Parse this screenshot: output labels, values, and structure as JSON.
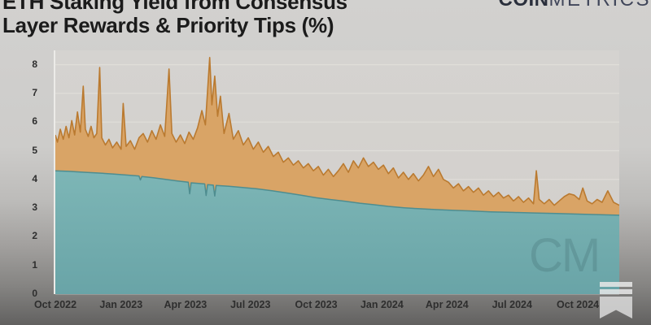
{
  "header": {
    "title_line1": "ETH Staking Yield from Consensus",
    "title_line2": "Layer Rewards & Priority Tips (%)"
  },
  "logo": {
    "bold": "COIN",
    "light": "METRICS"
  },
  "watermark_text": "CM",
  "colors": {
    "consensus_fill_top": "#7db6b6",
    "consensus_fill_bottom": "#69a4a7",
    "consensus_stroke": "#4e8d90",
    "tips_fill": "#d9a466",
    "tips_stroke": "#ba7a30",
    "plot_bg": "#d2cfcb",
    "grid": "#e0ded9"
  },
  "chart_data": {
    "type": "area",
    "title": "ETH Staking Yield from Consensus Layer Rewards & Priority Tips (%)",
    "xlabel": "",
    "ylabel": "",
    "ylim": [
      0,
      8
    ],
    "yticks": [
      0,
      1,
      2,
      3,
      4,
      5,
      6,
      7,
      8
    ],
    "grid": true,
    "legend": "none",
    "x_range": [
      "2022-10-01",
      "2024-11-28"
    ],
    "xticks": [
      {
        "label": "Oct 2022",
        "date": "2022-10-01"
      },
      {
        "label": "Jan 2023",
        "date": "2023-01-01"
      },
      {
        "label": "Apr 2023",
        "date": "2023-04-01"
      },
      {
        "label": "Jul 2023",
        "date": "2023-07-01"
      },
      {
        "label": "Oct 2023",
        "date": "2023-10-01"
      },
      {
        "label": "Jan 2024",
        "date": "2024-01-01"
      },
      {
        "label": "Apr 2024",
        "date": "2024-04-01"
      },
      {
        "label": "Jul 2024",
        "date": "2024-07-01"
      },
      {
        "label": "Oct 2024",
        "date": "2024-10-01"
      }
    ],
    "series": [
      {
        "name": "total_consensus_plus_priority_tips",
        "points": [
          [
            "2022-10-01",
            5.55
          ],
          [
            "2022-10-04",
            5.3
          ],
          [
            "2022-10-08",
            5.75
          ],
          [
            "2022-10-12",
            5.4
          ],
          [
            "2022-10-16",
            5.85
          ],
          [
            "2022-10-20",
            5.45
          ],
          [
            "2022-10-24",
            6.05
          ],
          [
            "2022-10-28",
            5.55
          ],
          [
            "2022-11-01",
            6.35
          ],
          [
            "2022-11-05",
            5.65
          ],
          [
            "2022-11-09",
            7.25
          ],
          [
            "2022-11-12",
            5.75
          ],
          [
            "2022-11-16",
            5.5
          ],
          [
            "2022-11-20",
            5.85
          ],
          [
            "2022-11-24",
            5.45
          ],
          [
            "2022-11-28",
            5.6
          ],
          [
            "2022-12-02",
            7.9
          ],
          [
            "2022-12-05",
            5.45
          ],
          [
            "2022-12-10",
            5.2
          ],
          [
            "2022-12-15",
            5.4
          ],
          [
            "2022-12-20",
            5.1
          ],
          [
            "2022-12-26",
            5.3
          ],
          [
            "2023-01-01",
            5.05
          ],
          [
            "2023-01-04",
            6.65
          ],
          [
            "2023-01-08",
            5.15
          ],
          [
            "2023-01-14",
            5.35
          ],
          [
            "2023-01-20",
            5.05
          ],
          [
            "2023-01-26",
            5.45
          ],
          [
            "2023-02-01",
            5.6
          ],
          [
            "2023-02-07",
            5.3
          ],
          [
            "2023-02-13",
            5.7
          ],
          [
            "2023-02-19",
            5.4
          ],
          [
            "2023-02-25",
            5.9
          ],
          [
            "2023-03-03",
            5.5
          ],
          [
            "2023-03-09",
            7.85
          ],
          [
            "2023-03-13",
            5.6
          ],
          [
            "2023-03-19",
            5.3
          ],
          [
            "2023-03-25",
            5.55
          ],
          [
            "2023-03-31",
            5.25
          ],
          [
            "2023-04-06",
            5.65
          ],
          [
            "2023-04-12",
            5.4
          ],
          [
            "2023-04-18",
            5.8
          ],
          [
            "2023-04-24",
            6.4
          ],
          [
            "2023-04-29",
            5.9
          ],
          [
            "2023-05-05",
            8.25
          ],
          [
            "2023-05-08",
            6.6
          ],
          [
            "2023-05-12",
            7.6
          ],
          [
            "2023-05-16",
            6.2
          ],
          [
            "2023-05-20",
            6.9
          ],
          [
            "2023-05-25",
            5.6
          ],
          [
            "2023-06-01",
            6.3
          ],
          [
            "2023-06-07",
            5.4
          ],
          [
            "2023-06-14",
            5.7
          ],
          [
            "2023-06-21",
            5.2
          ],
          [
            "2023-06-28",
            5.45
          ],
          [
            "2023-07-05",
            5.05
          ],
          [
            "2023-07-12",
            5.3
          ],
          [
            "2023-07-19",
            4.95
          ],
          [
            "2023-07-26",
            5.15
          ],
          [
            "2023-08-02",
            4.8
          ],
          [
            "2023-08-09",
            4.95
          ],
          [
            "2023-08-16",
            4.6
          ],
          [
            "2023-08-23",
            4.75
          ],
          [
            "2023-08-30",
            4.5
          ],
          [
            "2023-09-06",
            4.65
          ],
          [
            "2023-09-13",
            4.4
          ],
          [
            "2023-09-20",
            4.55
          ],
          [
            "2023-09-27",
            4.3
          ],
          [
            "2023-10-04",
            4.45
          ],
          [
            "2023-10-11",
            4.15
          ],
          [
            "2023-10-18",
            4.35
          ],
          [
            "2023-10-25",
            4.1
          ],
          [
            "2023-11-01",
            4.3
          ],
          [
            "2023-11-08",
            4.55
          ],
          [
            "2023-11-15",
            4.25
          ],
          [
            "2023-11-22",
            4.65
          ],
          [
            "2023-11-29",
            4.4
          ],
          [
            "2023-12-06",
            4.75
          ],
          [
            "2023-12-13",
            4.45
          ],
          [
            "2023-12-20",
            4.6
          ],
          [
            "2023-12-27",
            4.35
          ],
          [
            "2024-01-03",
            4.5
          ],
          [
            "2024-01-10",
            4.2
          ],
          [
            "2024-01-17",
            4.4
          ],
          [
            "2024-01-24",
            4.05
          ],
          [
            "2024-01-31",
            4.25
          ],
          [
            "2024-02-07",
            4.0
          ],
          [
            "2024-02-14",
            4.2
          ],
          [
            "2024-02-21",
            3.95
          ],
          [
            "2024-02-28",
            4.15
          ],
          [
            "2024-03-06",
            4.45
          ],
          [
            "2024-03-13",
            4.1
          ],
          [
            "2024-03-20",
            4.35
          ],
          [
            "2024-03-27",
            4.0
          ],
          [
            "2024-04-03",
            3.9
          ],
          [
            "2024-04-10",
            3.7
          ],
          [
            "2024-04-17",
            3.85
          ],
          [
            "2024-04-24",
            3.6
          ],
          [
            "2024-05-01",
            3.75
          ],
          [
            "2024-05-08",
            3.55
          ],
          [
            "2024-05-15",
            3.7
          ],
          [
            "2024-05-22",
            3.45
          ],
          [
            "2024-05-29",
            3.6
          ],
          [
            "2024-06-05",
            3.4
          ],
          [
            "2024-06-12",
            3.55
          ],
          [
            "2024-06-19",
            3.35
          ],
          [
            "2024-06-26",
            3.45
          ],
          [
            "2024-07-03",
            3.25
          ],
          [
            "2024-07-10",
            3.4
          ],
          [
            "2024-07-17",
            3.2
          ],
          [
            "2024-07-24",
            3.35
          ],
          [
            "2024-07-31",
            3.15
          ],
          [
            "2024-08-04",
            4.3
          ],
          [
            "2024-08-08",
            3.3
          ],
          [
            "2024-08-15",
            3.15
          ],
          [
            "2024-08-22",
            3.3
          ],
          [
            "2024-08-29",
            3.1
          ],
          [
            "2024-09-05",
            3.25
          ],
          [
            "2024-09-12",
            3.4
          ],
          [
            "2024-09-19",
            3.5
          ],
          [
            "2024-09-26",
            3.45
          ],
          [
            "2024-10-03",
            3.3
          ],
          [
            "2024-10-08",
            3.7
          ],
          [
            "2024-10-14",
            3.25
          ],
          [
            "2024-10-21",
            3.15
          ],
          [
            "2024-10-28",
            3.3
          ],
          [
            "2024-11-04",
            3.2
          ],
          [
            "2024-11-12",
            3.6
          ],
          [
            "2024-11-20",
            3.2
          ],
          [
            "2024-11-28",
            3.1
          ]
        ]
      },
      {
        "name": "consensus_layer_rewards",
        "points": [
          [
            "2022-10-01",
            4.3
          ],
          [
            "2022-10-20",
            4.28
          ],
          [
            "2022-11-10",
            4.25
          ],
          [
            "2022-12-01",
            4.22
          ],
          [
            "2022-12-20",
            4.19
          ],
          [
            "2023-01-10",
            4.15
          ],
          [
            "2023-01-26",
            4.12
          ],
          [
            "2023-01-28",
            3.98
          ],
          [
            "2023-01-30",
            4.1
          ],
          [
            "2023-02-15",
            4.06
          ],
          [
            "2023-03-01",
            4.01
          ],
          [
            "2023-03-20",
            3.95
          ],
          [
            "2023-04-05",
            3.9
          ],
          [
            "2023-04-07",
            3.5
          ],
          [
            "2023-04-09",
            3.88
          ],
          [
            "2023-04-28",
            3.84
          ],
          [
            "2023-04-30",
            3.44
          ],
          [
            "2023-05-02",
            3.82
          ],
          [
            "2023-05-10",
            3.8
          ],
          [
            "2023-05-12",
            3.42
          ],
          [
            "2023-05-14",
            3.79
          ],
          [
            "2023-06-01",
            3.76
          ],
          [
            "2023-06-20",
            3.72
          ],
          [
            "2023-07-10",
            3.67
          ],
          [
            "2023-08-01",
            3.6
          ],
          [
            "2023-08-20",
            3.53
          ],
          [
            "2023-09-10",
            3.45
          ],
          [
            "2023-10-01",
            3.36
          ],
          [
            "2023-10-20",
            3.3
          ],
          [
            "2023-11-10",
            3.24
          ],
          [
            "2023-12-01",
            3.17
          ],
          [
            "2023-12-20",
            3.12
          ],
          [
            "2024-01-10",
            3.06
          ],
          [
            "2024-02-01",
            3.01
          ],
          [
            "2024-02-20",
            2.98
          ],
          [
            "2024-03-15",
            2.95
          ],
          [
            "2024-04-10",
            2.92
          ],
          [
            "2024-05-05",
            2.9
          ],
          [
            "2024-06-01",
            2.87
          ],
          [
            "2024-07-01",
            2.85
          ],
          [
            "2024-08-01",
            2.83
          ],
          [
            "2024-09-01",
            2.81
          ],
          [
            "2024-10-01",
            2.79
          ],
          [
            "2024-11-01",
            2.77
          ],
          [
            "2024-11-28",
            2.75
          ]
        ]
      }
    ]
  }
}
